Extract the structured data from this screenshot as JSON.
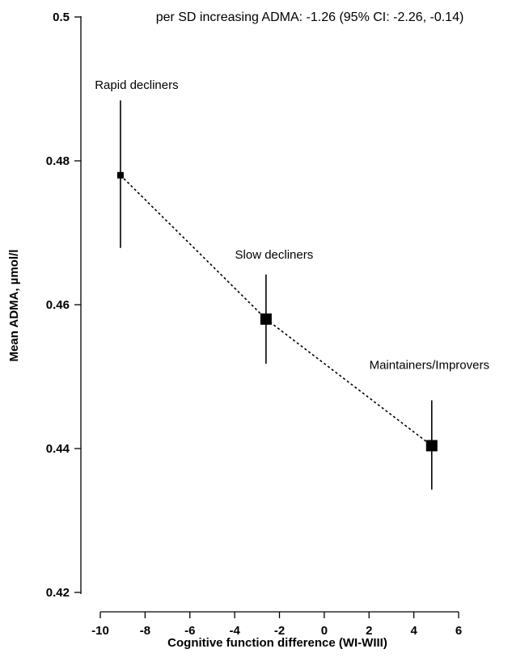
{
  "chart_data": {
    "type": "scatter",
    "annotation": "per SD increasing ADMA: -1.26 (95% CI: -2.26, -0.14)",
    "xlabel": "Cognitive function difference (WI-WIII)",
    "ylabel": "Mean ADMA, µmol/l",
    "xlim": [
      -10,
      6
    ],
    "ylim": [
      0.42,
      0.5
    ],
    "xticks": [
      -10,
      -8,
      -6,
      -4,
      -2,
      0,
      2,
      4,
      6
    ],
    "xtick_labels": [
      "-10",
      "-8",
      "-6",
      "-4",
      "-2",
      "0",
      "2",
      "4",
      "6"
    ],
    "yticks": [
      0.42,
      0.44,
      0.46,
      0.48,
      0.5
    ],
    "ytick_labels": [
      "0.42",
      "0.44",
      "0.46",
      "0.48",
      "0.5"
    ],
    "connector": "dotted",
    "grid": false,
    "points": [
      {
        "label": "Rapid decliners",
        "x": -9.1,
        "y": 0.478,
        "ci": [
          0.4679,
          0.4884
        ],
        "marker": "small-square"
      },
      {
        "label": "Slow decliners",
        "x": -2.6,
        "y": 0.458,
        "ci": [
          0.4518,
          0.4642
        ],
        "marker": "square"
      },
      {
        "label": "Maintainers/Improvers",
        "x": 4.8,
        "y": 0.4404,
        "ci": [
          0.4343,
          0.4467
        ],
        "marker": "square"
      }
    ]
  }
}
